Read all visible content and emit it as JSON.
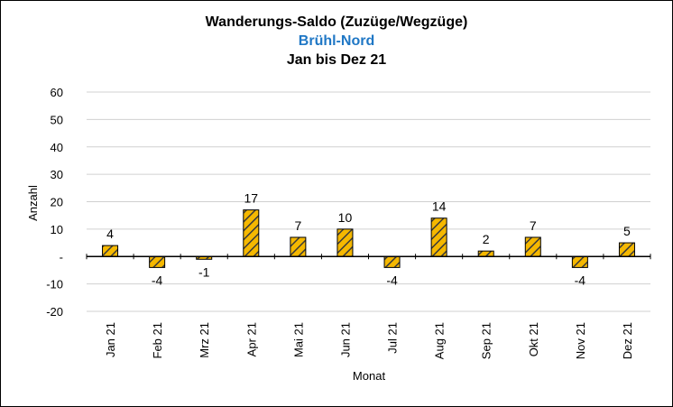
{
  "chart_data": {
    "type": "bar",
    "title": "Wanderungs-Saldo (Zuzüge/Wegzüge)",
    "subtitle": "Brühl-Nord",
    "subtitle2": "Jan bis Dez 21",
    "xlabel": "Monat",
    "ylabel": "Anzahl",
    "categories": [
      "Jan 21",
      "Feb 21",
      "Mrz 21",
      "Apr 21",
      "Mai 21",
      "Jun 21",
      "Jul 21",
      "Aug 21",
      "Sep 21",
      "Okt 21",
      "Nov 21",
      "Dez 21"
    ],
    "values": [
      4,
      -4,
      -1,
      17,
      7,
      10,
      -4,
      14,
      2,
      7,
      -4,
      5
    ],
    "ylim": [
      -20,
      60
    ],
    "yticks": [
      "-20",
      "-10",
      "-",
      "10",
      "20",
      "30",
      "40",
      "50",
      "60"
    ],
    "grid": true,
    "legend": "none",
    "colors": {
      "bar_fill": "#f5b800",
      "bar_hatch": "#3a3a3a",
      "grid": "#d0d0d0",
      "subtitle": "#1f77c5"
    }
  }
}
